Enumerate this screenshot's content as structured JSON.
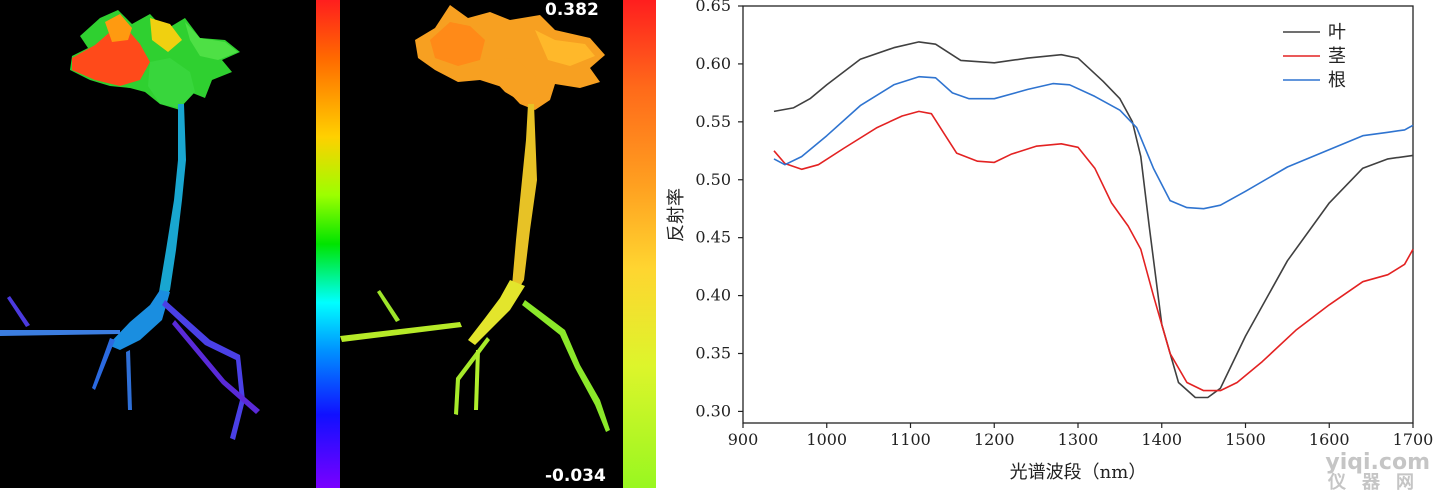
{
  "images": {
    "left": {
      "colormap": [
        "#ff1e1e",
        "#ff6a00",
        "#ffd000",
        "#9cff00",
        "#00e400",
        "#00ffff",
        "#0090ff",
        "#1010ff",
        "#7a00ff"
      ]
    },
    "middle": {
      "range_max": "0.382",
      "range_min": "-0.034",
      "colormap": [
        "#ff1e1e",
        "#ff6a1a",
        "#ffa020",
        "#ffd530",
        "#ddf52b",
        "#98f720"
      ]
    }
  },
  "chart_data": {
    "type": "line",
    "xlabel": "光谱波段（nm）",
    "ylabel": "反射率",
    "xlim": [
      900,
      1700
    ],
    "ylim": [
      0.29,
      0.65
    ],
    "xticks": [
      "900",
      "1000",
      "1100",
      "1200",
      "1300",
      "1400",
      "1500",
      "1600",
      "1700"
    ],
    "yticks": [
      "0.30",
      "0.35",
      "0.40",
      "0.45",
      "0.50",
      "0.55",
      "0.60",
      "0.65"
    ],
    "legend_position": "top-right",
    "grid": false,
    "series": [
      {
        "name": "叶",
        "color": "#404040",
        "x": [
          937,
          960,
          980,
          1000,
          1040,
          1080,
          1110,
          1130,
          1145,
          1160,
          1200,
          1240,
          1280,
          1300,
          1330,
          1350,
          1365,
          1375,
          1385,
          1400,
          1420,
          1440,
          1455,
          1470,
          1500,
          1550,
          1600,
          1640,
          1670,
          1700
        ],
        "y": [
          0.559,
          0.562,
          0.57,
          0.582,
          0.604,
          0.614,
          0.619,
          0.617,
          0.61,
          0.603,
          0.601,
          0.605,
          0.608,
          0.605,
          0.585,
          0.57,
          0.55,
          0.52,
          0.46,
          0.375,
          0.325,
          0.312,
          0.312,
          0.32,
          0.365,
          0.43,
          0.48,
          0.51,
          0.518,
          0.521
        ]
      },
      {
        "name": "茎",
        "color": "#e32222",
        "x": [
          937,
          950,
          970,
          990,
          1020,
          1060,
          1090,
          1110,
          1125,
          1140,
          1155,
          1180,
          1200,
          1220,
          1250,
          1280,
          1300,
          1320,
          1340,
          1360,
          1375,
          1390,
          1410,
          1430,
          1450,
          1470,
          1490,
          1520,
          1560,
          1600,
          1640,
          1670,
          1690,
          1700
        ],
        "y": [
          0.525,
          0.514,
          0.509,
          0.513,
          0.527,
          0.545,
          0.555,
          0.559,
          0.557,
          0.54,
          0.523,
          0.516,
          0.515,
          0.522,
          0.529,
          0.531,
          0.528,
          0.51,
          0.48,
          0.46,
          0.44,
          0.4,
          0.35,
          0.325,
          0.318,
          0.318,
          0.325,
          0.343,
          0.37,
          0.392,
          0.412,
          0.418,
          0.427,
          0.44
        ]
      },
      {
        "name": "根",
        "color": "#2f74d0",
        "x": [
          937,
          950,
          970,
          1000,
          1040,
          1080,
          1110,
          1130,
          1150,
          1170,
          1200,
          1240,
          1270,
          1290,
          1320,
          1350,
          1370,
          1390,
          1410,
          1430,
          1450,
          1470,
          1500,
          1550,
          1600,
          1640,
          1670,
          1690,
          1700
        ],
        "y": [
          0.518,
          0.513,
          0.52,
          0.538,
          0.564,
          0.582,
          0.589,
          0.588,
          0.575,
          0.57,
          0.57,
          0.578,
          0.583,
          0.582,
          0.572,
          0.56,
          0.545,
          0.51,
          0.482,
          0.476,
          0.475,
          0.478,
          0.49,
          0.511,
          0.526,
          0.538,
          0.541,
          0.543,
          0.547
        ]
      }
    ]
  },
  "watermark": {
    "line1": "yiqi.com",
    "line2": "仪器网"
  }
}
